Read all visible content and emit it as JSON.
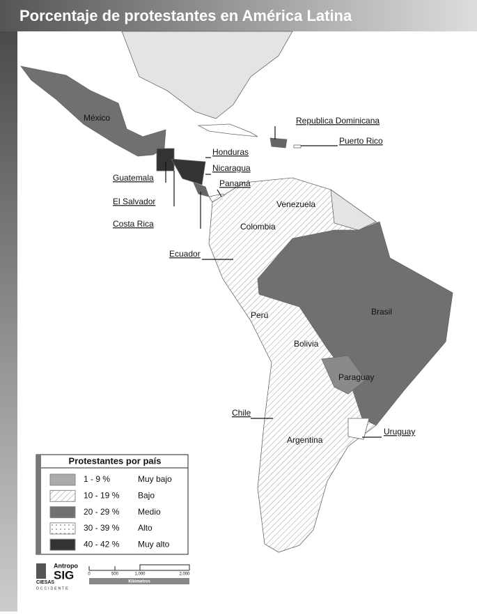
{
  "header": {
    "title": "Porcentaje de protestantes en América Latina"
  },
  "map": {
    "labels": [
      "México",
      "Republica Dominicana",
      "Puerto Rico",
      "Honduras",
      "Nicaragua",
      "Guatemala",
      "Panamá",
      "El Salvador",
      "Costa Rica",
      "Venezuela",
      "Colombia",
      "Ecuador",
      "Brasil",
      "Perú",
      "Bolivia",
      "Paraguay",
      "Chile",
      "Argentina",
      "Uruguay"
    ]
  },
  "legend": {
    "title": "Protestantes por país",
    "items": [
      {
        "range": "1 - 9 %",
        "level": "Muy bajo"
      },
      {
        "range": "10 - 19 %",
        "level": "Bajo"
      },
      {
        "range": "20 - 29 %",
        "level": "Medio"
      },
      {
        "range": "30 - 39 %",
        "level": "Alto"
      },
      {
        "range": "40 - 42 %",
        "level": "Muy alto"
      }
    ]
  },
  "scale": {
    "ticks": [
      "0",
      "500",
      "1,000",
      "2,000"
    ],
    "unit": "Kilómetros"
  },
  "logo": {
    "name": "Antropo",
    "brand": "SIG",
    "institution": "CIESAS",
    "region": "OCCIDENTE"
  }
}
